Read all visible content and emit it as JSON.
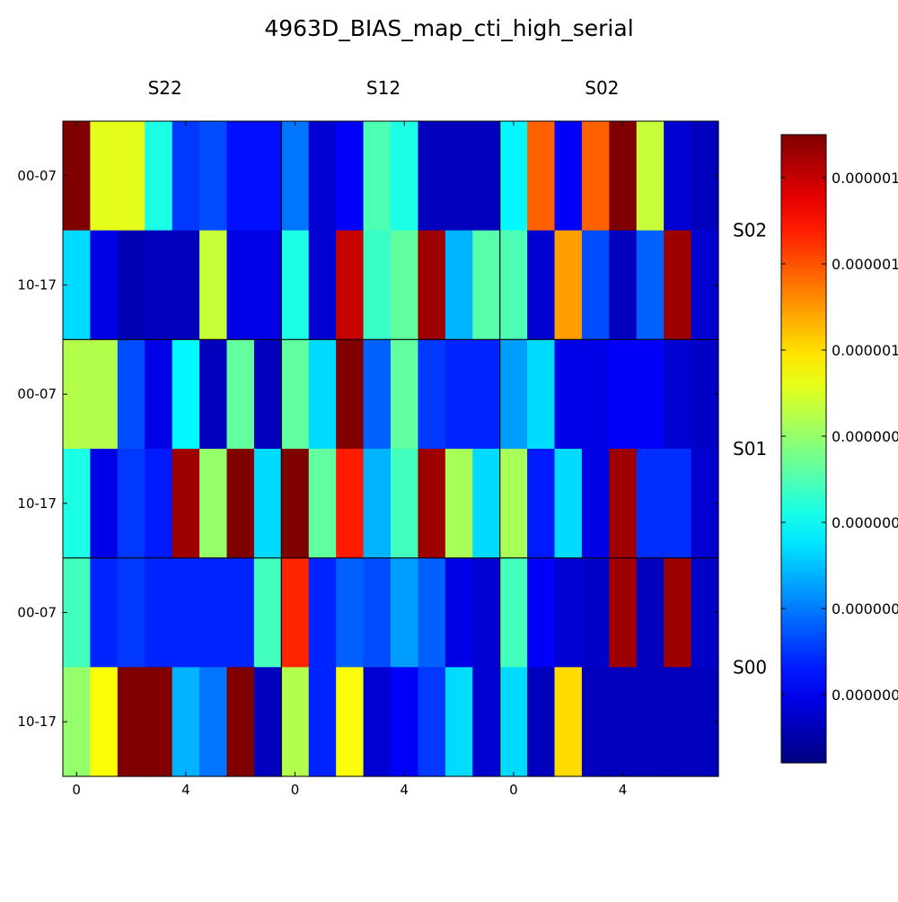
{
  "chart_data": {
    "type": "heatmap",
    "title": "4963D_BIAS_map_cti_high_serial",
    "column_groups": [
      "S22",
      "S12",
      "S02"
    ],
    "row_groups": [
      "S02",
      "S01",
      "S00"
    ],
    "row_labels": [
      "00-07",
      "10-17",
      "00-07",
      "10-17",
      "00-07",
      "10-17"
    ],
    "x_tick_labels": [
      "0",
      "4"
    ],
    "colorbar_tick_labels": [
      "0.000001",
      "0.000001",
      "0.000001",
      "0.000000",
      "0.000000",
      "0.000000",
      "0.000000"
    ],
    "colormap": "jet",
    "grid": false,
    "colorbar_position": "right",
    "vmin": 0.0,
    "vmax": 1.0,
    "values": [
      [
        1.0,
        0.6,
        0.6,
        0.4,
        0.18,
        0.2,
        0.14,
        0.14,
        0.24,
        0.08,
        0.12,
        0.45,
        0.4,
        0.06,
        0.06,
        0.06,
        0.37,
        0.78,
        0.12,
        0.78,
        1.0,
        0.57,
        0.08,
        0.06
      ],
      [
        0.34,
        0.1,
        0.05,
        0.06,
        0.06,
        0.57,
        0.1,
        0.1,
        0.4,
        0.08,
        0.93,
        0.43,
        0.47,
        0.97,
        0.3,
        0.46,
        0.45,
        0.08,
        0.72,
        0.2,
        0.06,
        0.22,
        0.97,
        0.08
      ],
      [
        0.55,
        0.55,
        0.2,
        0.1,
        0.37,
        0.06,
        0.47,
        0.06,
        0.47,
        0.34,
        1.0,
        0.22,
        0.47,
        0.18,
        0.16,
        0.16,
        0.28,
        0.34,
        0.1,
        0.1,
        0.12,
        0.12,
        0.08,
        0.07
      ],
      [
        0.4,
        0.1,
        0.18,
        0.15,
        0.97,
        0.52,
        1.0,
        0.34,
        1.0,
        0.47,
        0.85,
        0.3,
        0.44,
        0.97,
        0.54,
        0.34,
        0.54,
        0.15,
        0.34,
        0.1,
        0.97,
        0.17,
        0.17,
        0.08
      ],
      [
        0.44,
        0.16,
        0.18,
        0.16,
        0.16,
        0.16,
        0.16,
        0.44,
        0.84,
        0.16,
        0.22,
        0.2,
        0.28,
        0.22,
        0.1,
        0.08,
        0.44,
        0.12,
        0.08,
        0.07,
        0.97,
        0.06,
        0.97,
        0.07
      ],
      [
        0.52,
        0.62,
        1.0,
        1.0,
        0.3,
        0.24,
        1.0,
        0.06,
        0.55,
        0.16,
        0.62,
        0.08,
        0.12,
        0.18,
        0.34,
        0.08,
        0.34,
        0.06,
        0.66,
        0.06,
        0.06,
        0.06,
        0.06,
        0.06
      ]
    ]
  }
}
